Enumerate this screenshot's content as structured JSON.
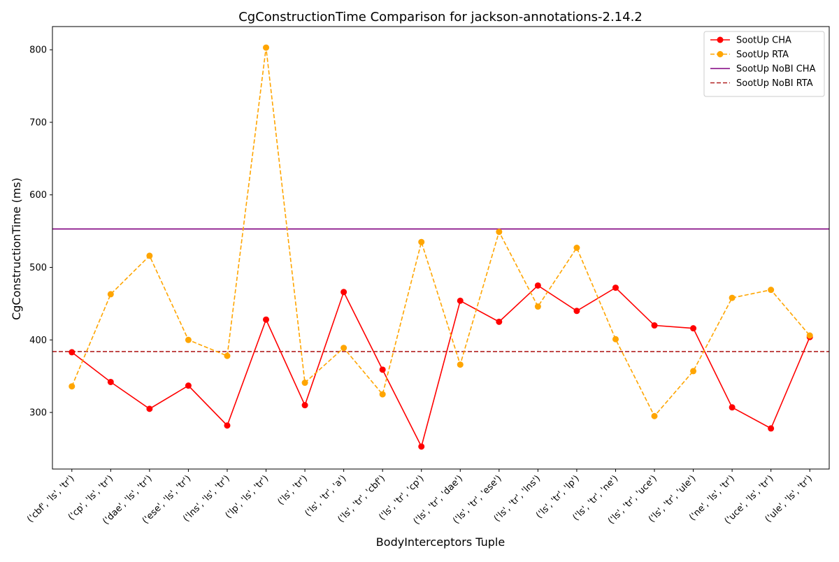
{
  "chart_data": {
    "type": "line",
    "title": "CgConstructionTime Comparison for jackson-annotations-2.14.2",
    "xlabel": "BodyInterceptors Tuple",
    "ylabel": "CgConstructionTime (ms)",
    "ylim": [
      222,
      832
    ],
    "yticks": [
      300,
      400,
      500,
      600,
      700,
      800
    ],
    "grid": false,
    "legend_position": "top-right",
    "categories": [
      "('cbf', 'ls', 'tr')",
      "('cp', 'ls', 'tr')",
      "('dae', 'ls', 'tr')",
      "('ese', 'ls', 'tr')",
      "('lns', 'ls', 'tr')",
      "('lp', 'ls', 'tr')",
      "('ls', 'tr')",
      "('ls', 'tr', 'a')",
      "('ls', 'tr', 'cbf')",
      "('ls', 'tr', 'cp')",
      "('ls', 'tr', 'dae')",
      "('ls', 'tr', 'ese')",
      "('ls', 'tr', 'lns')",
      "('ls', 'tr', 'lp')",
      "('ls', 'tr', 'ne')",
      "('ls', 'tr', 'uce')",
      "('ls', 'tr', 'ule')",
      "('ne', 'ls', 'tr')",
      "('uce', 'ls', 'tr')",
      "('ule', 'ls', 'tr')"
    ],
    "series": [
      {
        "name": "SootUp CHA",
        "style": "solid-marker",
        "color": "#ff0000",
        "values": [
          383,
          342,
          305,
          337,
          282,
          428,
          310,
          466,
          359,
          253,
          454,
          425,
          475,
          440,
          472,
          420,
          416,
          307,
          278,
          404
        ]
      },
      {
        "name": "SootUp RTA",
        "style": "dashed-marker",
        "color": "#ffa500",
        "values": [
          336,
          463,
          516,
          400,
          378,
          803,
          341,
          389,
          325,
          535,
          366,
          549,
          446,
          527,
          401,
          295,
          357,
          458,
          469,
          406
        ]
      }
    ],
    "reference_lines": [
      {
        "name": "SootUp NoBI CHA",
        "style": "solid",
        "color": "#800080",
        "value": 553
      },
      {
        "name": "SootUp NoBI RTA",
        "style": "dashed",
        "color": "#b22222",
        "value": 384
      }
    ]
  }
}
